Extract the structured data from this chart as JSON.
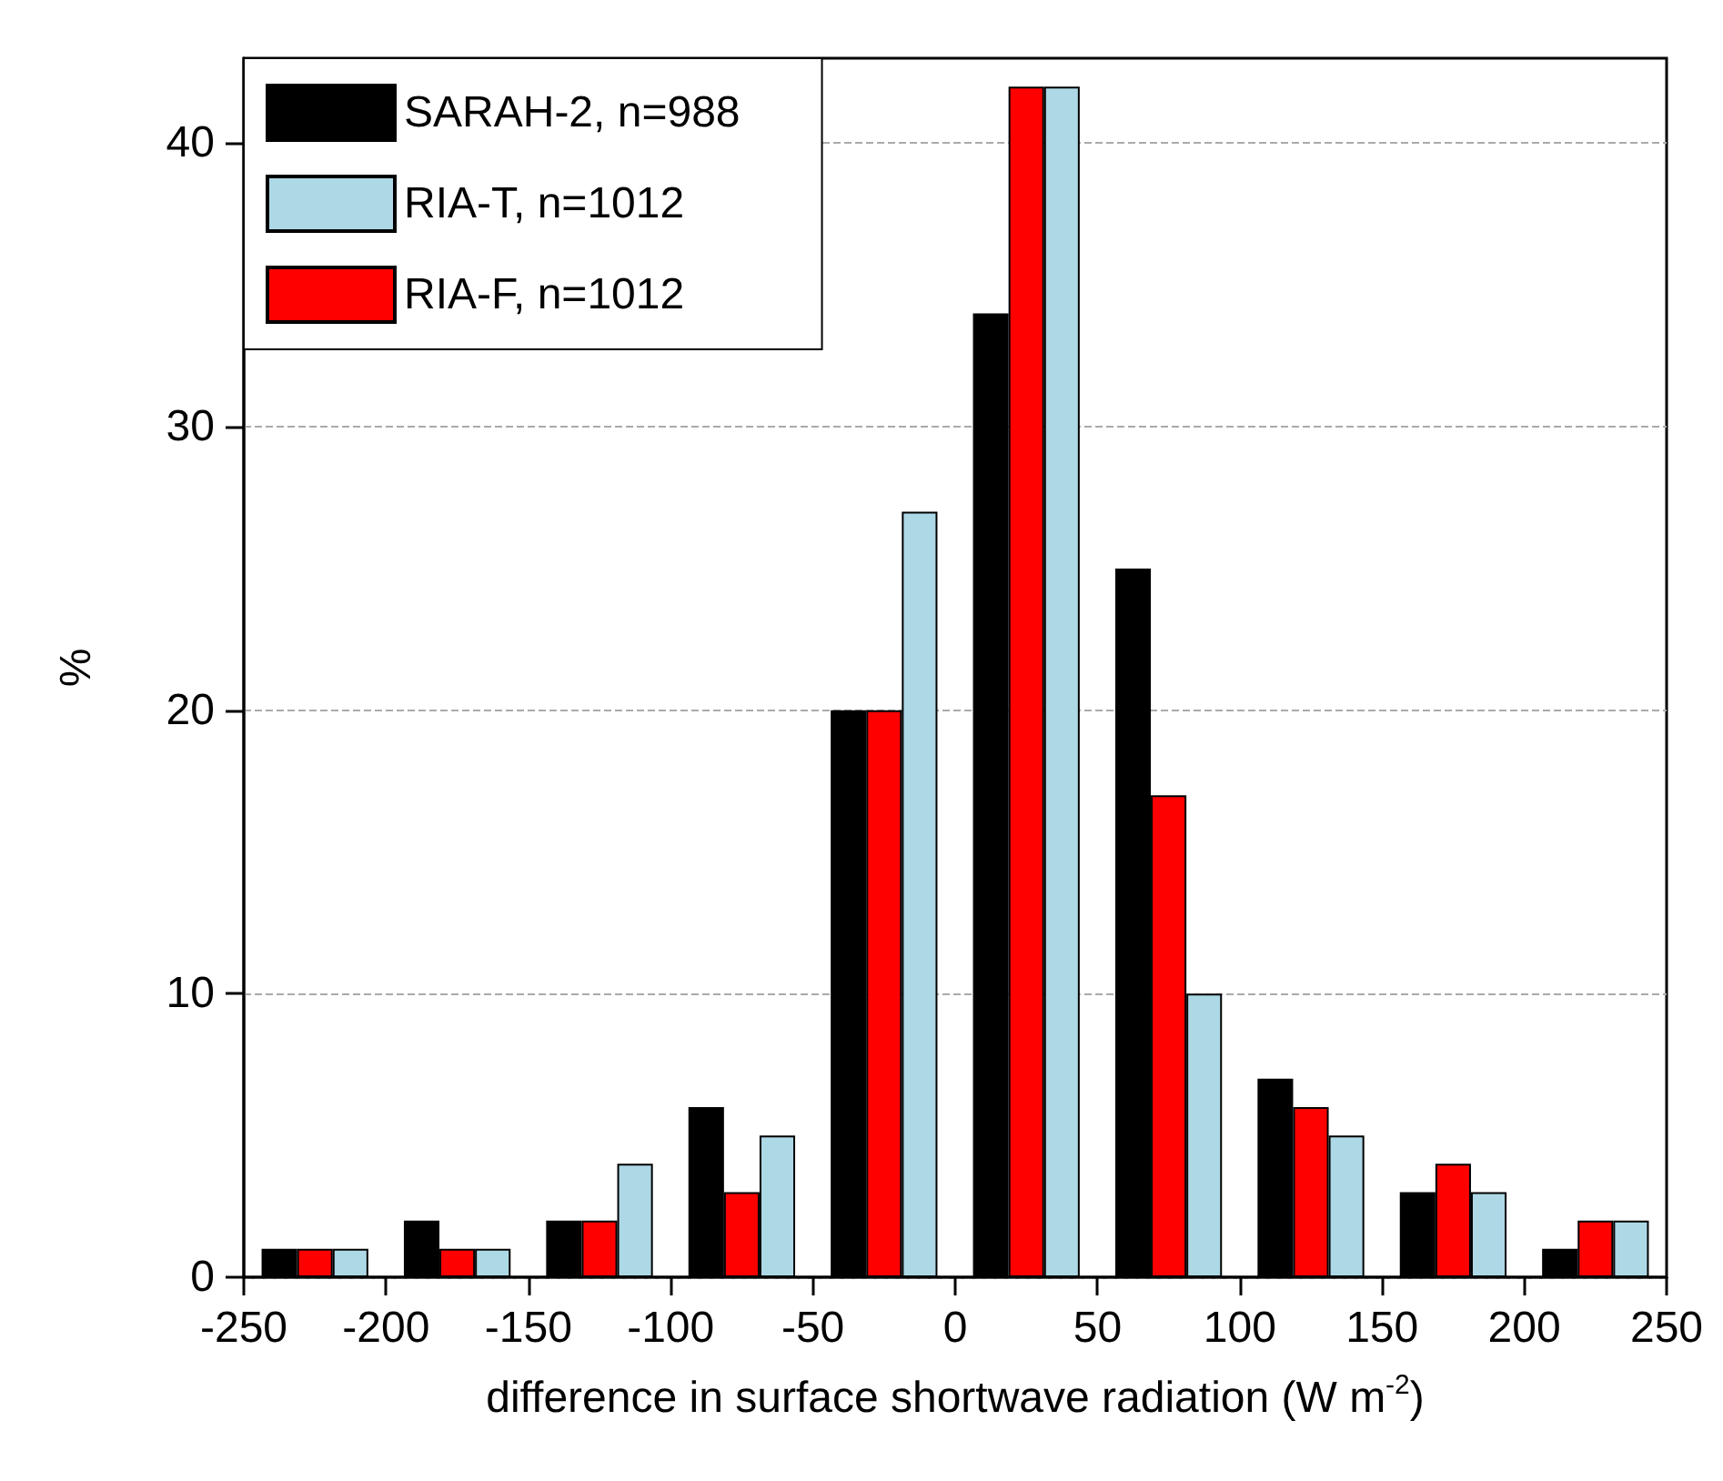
{
  "chart_data": {
    "type": "bar",
    "xlabel": "difference in surface shortwave radiation (W m$^{-2}$)",
    "ylabel": "%",
    "series": [
      {
        "name": "SARAH-2, n=988",
        "color": "#000000",
        "x": [
          -237.5,
          -187.5,
          -137.5,
          -87.5,
          -37.5,
          12.5,
          62.5,
          112.5,
          162.5,
          212.5
        ],
        "values": [
          1,
          2,
          2,
          6,
          20,
          34,
          25,
          7,
          3,
          1
        ]
      },
      {
        "name": "RIA-T, n=1012",
        "color": "#add8e6",
        "x": [
          -212.5,
          -162.5,
          -112.5,
          -62.5,
          -12.5,
          37.5,
          87.5,
          137.5,
          187.5,
          237.5
        ],
        "values": [
          1,
          1,
          4,
          5,
          27,
          42,
          10,
          5,
          3,
          2
        ]
      },
      {
        "name": "RIA-F, n=1012",
        "color": "#ff0000",
        "x": [
          -225,
          -175,
          -125,
          -75,
          -25,
          25,
          75,
          125,
          175,
          225
        ],
        "values": [
          1,
          1,
          2,
          3,
          20,
          42,
          17,
          6,
          4,
          2
        ]
      }
    ],
    "xlim": [
      -250,
      250
    ],
    "xticks": [
      -250,
      -200,
      -150,
      -100,
      -50,
      0,
      50,
      100,
      150,
      200,
      250
    ],
    "ylim": [
      0,
      43
    ],
    "yticks": [
      0,
      10,
      20,
      30,
      40
    ],
    "grid": "y",
    "legend": "top left"
  }
}
